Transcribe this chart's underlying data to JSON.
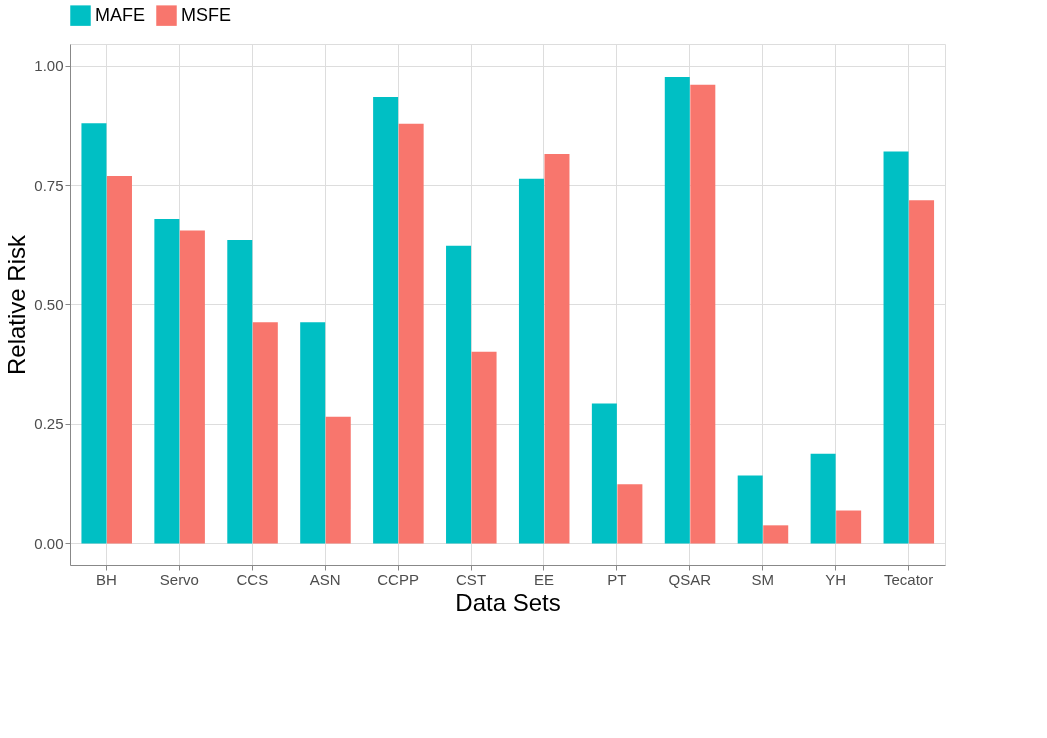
{
  "chart_data": {
    "type": "bar",
    "xlabel": "Data Sets",
    "ylabel": "Relative Risk",
    "categories": [
      "BH",
      "Servo",
      "CCS",
      "ASN",
      "CCPP",
      "CST",
      "EE",
      "PT",
      "QSAR",
      "SM",
      "YH",
      "Tecator"
    ],
    "series": [
      {
        "name": "MAFE",
        "color": "#00bfc4",
        "values": [
          0.879,
          0.679,
          0.635,
          0.463,
          0.934,
          0.623,
          0.763,
          0.293,
          0.976,
          0.142,
          0.188,
          0.82
        ]
      },
      {
        "name": "MSFE",
        "color": "#f8766d",
        "values": [
          0.769,
          0.655,
          0.463,
          0.265,
          0.878,
          0.401,
          0.815,
          0.124,
          0.96,
          0.038,
          0.069,
          0.718
        ]
      }
    ],
    "ylim": [
      -0.045,
      1.045
    ],
    "yticks": [
      {
        "value": 0,
        "label": "0.00"
      },
      {
        "value": 0.25,
        "label": "0.25"
      },
      {
        "value": 0.5,
        "label": "0.50"
      },
      {
        "value": 0.75,
        "label": "0.75"
      },
      {
        "value": 1,
        "label": "1.00"
      }
    ],
    "grid": true,
    "legend": "top"
  }
}
